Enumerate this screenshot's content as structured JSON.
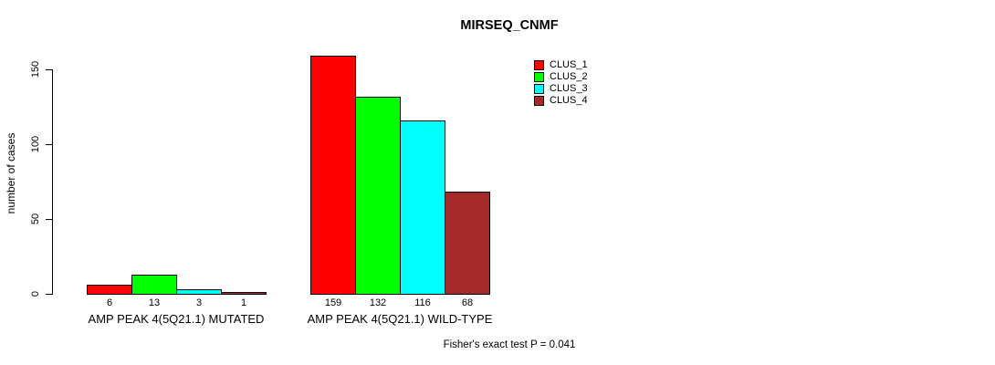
{
  "chart_data": {
    "type": "bar",
    "title": "MIRSEQ_CNMF",
    "xlabel": "",
    "ylabel": "number of cases",
    "categories": [
      "AMP PEAK 4(5Q21.1) MUTATED",
      "AMP PEAK 4(5Q21.1) WILD-TYPE"
    ],
    "series": [
      {
        "name": "CLUS_1",
        "color": "#FF0000",
        "values": [
          6,
          159
        ]
      },
      {
        "name": "CLUS_2",
        "color": "#00FF00",
        "values": [
          13,
          132
        ]
      },
      {
        "name": "CLUS_3",
        "color": "#00FFFF",
        "values": [
          3,
          116
        ]
      },
      {
        "name": "CLUS_4",
        "color": "#A52A2A",
        "values": [
          1,
          68
        ]
      }
    ],
    "yticks": [
      0,
      50,
      100,
      150
    ],
    "ylim": [
      0,
      165
    ],
    "grid": false,
    "show_bar_values": true,
    "legend_position": "top-right",
    "annotation": "Fisher's exact test P = 0.041"
  }
}
